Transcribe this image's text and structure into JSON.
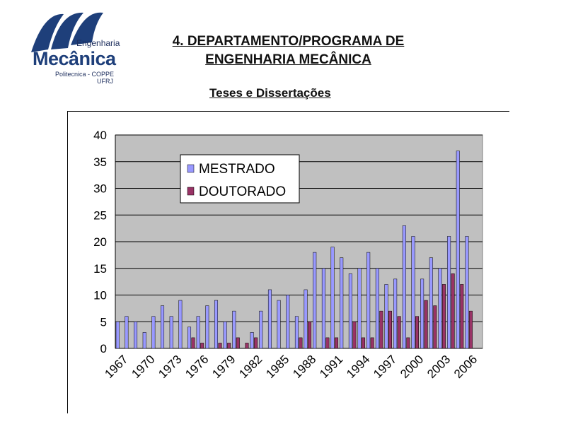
{
  "logo": {
    "line1": "Engenharia",
    "line2": "Mecânica",
    "line3": "Politecnica - COPPE",
    "line4": "UFRJ"
  },
  "page": {
    "title_line1": "4. DEPARTAMENTO/PROGRAMA DE",
    "title_line2": "ENGENHARIA MECÂNICA",
    "subtitle": "Teses e Dissertações"
  },
  "chart_data": {
    "type": "bar",
    "categories": [
      "1967",
      "1968",
      "1969",
      "1970",
      "1971",
      "1972",
      "1973",
      "1974",
      "1975",
      "1976",
      "1977",
      "1978",
      "1979",
      "1980",
      "1981",
      "1982",
      "1983",
      "1984",
      "1985",
      "1986",
      "1987",
      "1988",
      "1989",
      "1990",
      "1991",
      "1992",
      "1993",
      "1994",
      "1995",
      "1996",
      "1997",
      "1998",
      "1999",
      "2000",
      "2001",
      "2002",
      "2003",
      "2004",
      "2005",
      "2006",
      "2007"
    ],
    "tick_labels": [
      "1967",
      "1970",
      "1973",
      "1976",
      "1979",
      "1982",
      "1985",
      "1988",
      "1991",
      "1994",
      "1997",
      "2000",
      "2003",
      "2006"
    ],
    "series": [
      {
        "name": "MESTRADO",
        "color": "#9999ff",
        "values": [
          5,
          6,
          5,
          3,
          6,
          8,
          6,
          9,
          4,
          6,
          8,
          9,
          5,
          7,
          0,
          3,
          7,
          11,
          9,
          10,
          6,
          11,
          18,
          15,
          19,
          17,
          14,
          15,
          18,
          15,
          12,
          13,
          23,
          21,
          13,
          17,
          15,
          21,
          37,
          21,
          0
        ]
      },
      {
        "name": "DOUTORADO",
        "color": "#993366",
        "values": [
          0,
          0,
          0,
          0,
          0,
          0,
          0,
          0,
          2,
          1,
          0,
          1,
          1,
          2,
          1,
          2,
          0,
          0,
          0,
          0,
          2,
          5,
          0,
          2,
          2,
          0,
          5,
          2,
          2,
          7,
          7,
          6,
          2,
          6,
          9,
          8,
          12,
          14,
          12,
          7,
          0
        ]
      }
    ],
    "ylim": [
      0,
      40
    ],
    "yticks": [
      0,
      5,
      10,
      15,
      20,
      25,
      30,
      35,
      40
    ],
    "grid": true,
    "legend_position": "top-left",
    "plot_background": "#c0c0c0"
  }
}
